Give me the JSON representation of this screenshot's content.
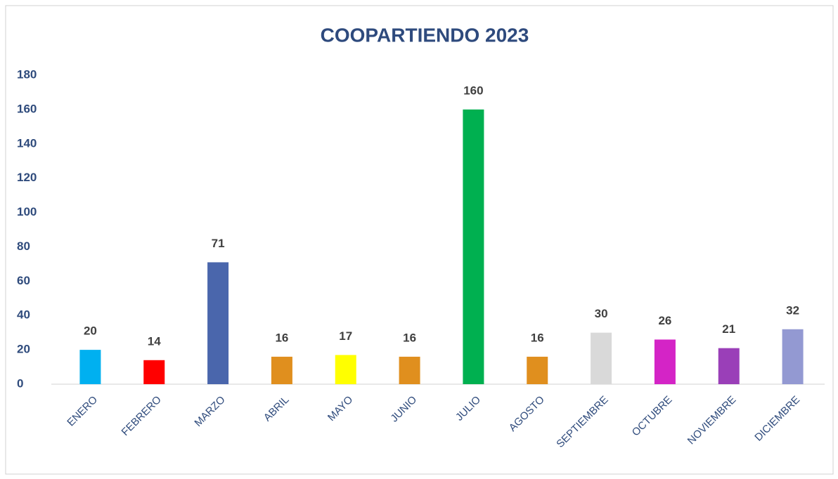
{
  "chart_data": {
    "type": "bar",
    "title": "COOPARTIENDO 2023",
    "categories": [
      "ENERO",
      "FEBRERO",
      "MARZO",
      "ABRIL",
      "MAYO",
      "JUNIO",
      "JULIO",
      "AGOSTO",
      "SEPTIEMBRE",
      "OCTUBRE",
      "NOVIEMBRE",
      "DICIEMBRE"
    ],
    "values": [
      20,
      14,
      71,
      16,
      17,
      16,
      160,
      16,
      30,
      26,
      21,
      32
    ],
    "colors": [
      "#00b0f0",
      "#ff0000",
      "#4a66ac",
      "#e08f1e",
      "#ffff00",
      "#e08f1e",
      "#00b050",
      "#e08f1e",
      "#d9d9d9",
      "#d424c6",
      "#9a3fb8",
      "#9399d2"
    ],
    "ylim": [
      0,
      180
    ],
    "yticks": [
      0,
      20,
      40,
      60,
      80,
      100,
      120,
      140,
      160,
      180
    ],
    "grid": false
  }
}
